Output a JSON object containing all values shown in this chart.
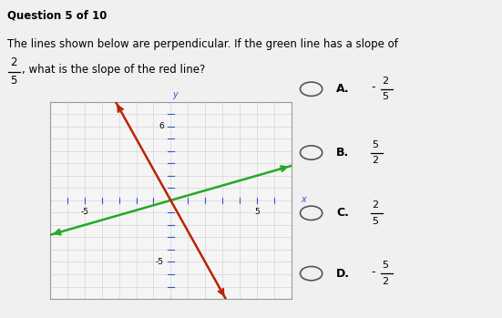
{
  "title_line1": "Question 5 of 10",
  "title_line2": "The lines shown below are perpendicular. If the green line has a slope of",
  "title_line3_fraction_num": "2",
  "title_line3_fraction_den": "5",
  "title_line3_rest": ", what is the slope of the red line?",
  "graph_xlim": [
    -7,
    7
  ],
  "graph_ylim": [
    -8,
    8
  ],
  "green_slope": 0.4,
  "green_intercept": 0,
  "red_slope": -2.5,
  "red_intercept": 0,
  "green_color": "#22aa22",
  "red_color": "#bb2200",
  "axis_color": "#3355cc",
  "graph_bg": "#f5f5f5",
  "fig_bg": "#f0f0f0",
  "options": [
    {
      "label": "A.",
      "sign": "-",
      "num": "2",
      "den": "5"
    },
    {
      "label": "B.",
      "sign": "",
      "num": "5",
      "den": "2"
    },
    {
      "label": "C.",
      "sign": "",
      "num": "2",
      "den": "5"
    },
    {
      "label": "D.",
      "sign": "-",
      "num": "5",
      "den": "2"
    }
  ],
  "fig_width": 5.51,
  "fig_height": 3.49
}
